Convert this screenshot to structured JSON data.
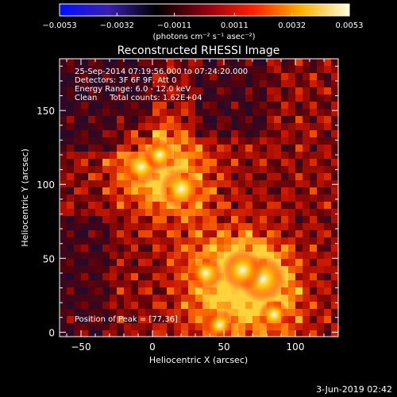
{
  "chart_data": {
    "type": "heatmap",
    "title": "Reconstructed RHESSI Image",
    "xlabel": "Heliocentric X (arcsec)",
    "ylabel": "Heliocentric Y (arcsec)",
    "xlim": [
      -65,
      130
    ],
    "ylim": [
      -3,
      185
    ],
    "x_ticks": [
      "-50",
      "0",
      "50",
      "100"
    ],
    "y_ticks": [
      "0",
      "50",
      "100",
      "150"
    ],
    "x_tick_values": [
      -50,
      0,
      50,
      100
    ],
    "y_tick_values": [
      0,
      50,
      100,
      150
    ],
    "colorbar": {
      "min": -0.0053,
      "max": 0.0053,
      "ticks": [
        "-0.0053",
        "-0.0032",
        "-0.0011",
        "0.0011",
        "0.0032",
        "0.0053"
      ],
      "unit_label": "(photons cm⁻² s⁻¹ asec⁻²)",
      "colormap": [
        "#0010ff",
        "#3a1fb0",
        "#000000",
        "#8a0010",
        "#ff2000",
        "#ffb000",
        "#ffffe0"
      ]
    },
    "info_lines": [
      "25-Sep-2014 07:19:56.000 to 07:24:20.000",
      "Detectors: 3F 6F 9F, Att 0",
      "Energy Range: 6.0 - 12.0 keV",
      "Clean     Total counts: 1.62E+04"
    ],
    "peak_label": "Position of Peak = [77,36]",
    "peak": [
      77,
      36
    ],
    "bright_sources": [
      {
        "x": 77,
        "y": 36,
        "value": 0.0053
      },
      {
        "x": 63,
        "y": 42,
        "value": 0.0045
      },
      {
        "x": 20,
        "y": 97,
        "value": 0.0046
      },
      {
        "x": -8,
        "y": 112,
        "value": 0.0038
      },
      {
        "x": 5,
        "y": 120,
        "value": 0.003
      },
      {
        "x": 37,
        "y": 40,
        "value": 0.0035
      },
      {
        "x": 47,
        "y": 5,
        "value": 0.003
      },
      {
        "x": 85,
        "y": 12,
        "value": 0.0028
      }
    ]
  },
  "footer_date": "3-Jun-2019 02:42"
}
